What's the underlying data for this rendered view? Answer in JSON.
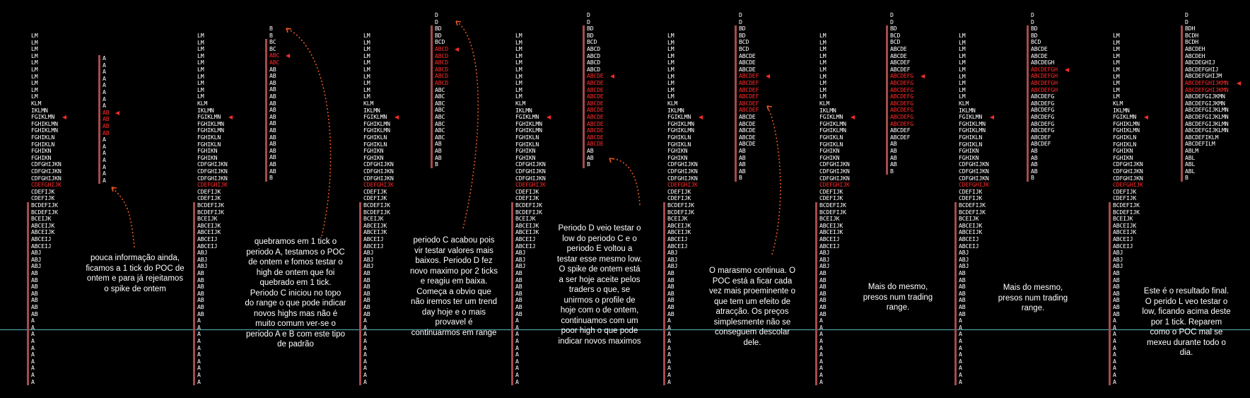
{
  "chart_data": {
    "type": "market-profile",
    "colors": {
      "text": "#ffffff",
      "poc": "#ff2a2a",
      "bar": "#a64b4b",
      "arrow": "#e8561e",
      "reference_line": "#5fb3c4"
    },
    "previous_day_profile": [
      "LM",
      "LM",
      "LM",
      "LM",
      "LM",
      "LM",
      "LM",
      "LM",
      "LM",
      "LM",
      "KLM",
      "IKLMN",
      "FGIKLMN",
      "FGHIKLMN",
      "FGHIKLMN",
      "FGHIKLN",
      "FGHIKLN",
      "FGHIKN",
      "FGHIKN",
      "CDFGHIJKN",
      "CDFGHIJKN",
      "CDFGHIJKN",
      "CDEFGHIJK",
      "CDEFIJK",
      "CDEFIJK",
      "BCDEFIJK",
      "BCDEFIJK",
      "BCEIJK",
      "ABCEIJK",
      "ABCEIJK",
      "ABCEIJ",
      "ABCEIJ",
      "ABJ",
      "ABJ",
      "ABJ",
      "AB",
      "AB",
      "AB",
      "AB",
      "AB",
      "AB",
      "AB",
      "A",
      "A",
      "A",
      "A",
      "A",
      "A",
      "A",
      "A",
      "A",
      "A"
    ],
    "previous_day_poc": "CDEFGHIJK",
    "today_profiles": [
      {
        "rows": [
          "A",
          "A",
          "A",
          "A",
          "A",
          "A",
          "A",
          "A",
          "AB",
          "AB",
          "AB",
          "AB",
          "A",
          "A",
          "A",
          "A",
          "A",
          "A",
          "A"
        ],
        "poc": "AB"
      },
      {
        "rows": [
          "B",
          "B",
          "BC",
          "BC",
          "ABC",
          "ABC",
          "AB",
          "AB",
          "AB",
          "AB",
          "AB",
          "AB",
          "AB",
          "AB",
          "AB",
          "AB",
          "AB",
          "AB",
          "AB",
          "AB",
          "AB",
          "AB",
          "B"
        ],
        "poc": "ABC"
      },
      {
        "rows": [
          "D",
          "D",
          "BD",
          "BD",
          "BCD",
          "ABCD",
          "ABCD",
          "ABCD",
          "ABCD",
          "ABCD",
          "ABCD",
          "ABC",
          "ABC",
          "ABC",
          "ABC",
          "ABC",
          "ABC",
          "ABC",
          "ABC",
          "AB",
          "AB",
          "AB",
          "B"
        ],
        "poc": "ABCD"
      },
      {
        "rows": [
          "D",
          "D",
          "BD",
          "BD",
          "BCD",
          "ABCD",
          "ABCD",
          "ABCD",
          "ABCD",
          "ABCDE",
          "ABCDE",
          "ABCDE",
          "ABCDE",
          "ABCDE",
          "ABCDE",
          "ABCDE",
          "ABCDE",
          "ABCDE",
          "ABCDE",
          "ABCDE",
          "AB",
          "AB",
          "B"
        ],
        "poc": "ABCDE"
      },
      {
        "rows": [
          "D",
          "D",
          "BD",
          "BD",
          "BCD",
          "BCD",
          "ABCDE",
          "ABCDE",
          "ABCDE",
          "ABCDEF",
          "ABCDEF",
          "ABCDEF",
          "ABCDEF",
          "ABCDEF",
          "ABCDEF",
          "ABCDE",
          "ABCDE",
          "ABCDE",
          "ABCDE",
          "ABCDE",
          "AB",
          "AB",
          "AB",
          "AB",
          "B"
        ],
        "poc": "ABCDEF"
      },
      {
        "rows": [
          "D",
          "D",
          "BD",
          "BCD",
          "BCD",
          "ABCDE",
          "ABCDE",
          "ABCDEF",
          "ABCDEF",
          "ABCDEFG",
          "ABCDEFG",
          "ABCDEFG",
          "ABCDEFG",
          "ABCDEFG",
          "ABCDEFG",
          "ABCDEFG",
          "ABCDEFG",
          "ABCDEF",
          "ABCDEF",
          "AB",
          "AB",
          "AB",
          "AB",
          "B"
        ],
        "poc": "ABCDEFG"
      },
      {
        "rows": [
          "D",
          "D",
          "BD",
          "BD",
          "BCD",
          "ABCDE",
          "ABCDE",
          "ABCDEGH",
          "ABCDEFGH",
          "ABCDEFGH",
          "ABCDEFGH",
          "ABCDEFGH",
          "ABCDEFG",
          "ABCDEFG",
          "ABCDEFG",
          "ABCDEFG",
          "ABCDEFG",
          "ABCDEFG",
          "ABCDEF",
          "ABCDEF",
          "AB",
          "AB",
          "AB",
          "AB",
          "B"
        ],
        "poc": "ABCDEFGH"
      },
      {
        "rows": [
          "D",
          "D",
          "BDH",
          "BCDH",
          "BCDH",
          "ABCDEH",
          "ABCDEH",
          "ABCDEGHIJ",
          "ABCDEFGHIJ",
          "ABCDEFGHIJM",
          "ABCDEFGHIJKMN",
          "ABCDEFGHIJKMN",
          "ABCDEFGIJKMN",
          "ABCDEFGIJKMN",
          "ABCDEFGIJKLMN",
          "ABCDEFGIJKLMN",
          "ABCDEFGIJKLMN",
          "ABCDEFGIJKLMN",
          "ABCDEFIKLM",
          "ABCDEFILM",
          "ABLM",
          "ABL",
          "ABL",
          "ABL",
          "B"
        ],
        "poc": "ABCDEFGHIJKMN"
      }
    ],
    "annotations": [
      "pouca informação ainda, ficamos a 1 tick do POC de ontem e para já rejeitamos o spike de ontem",
      "quebramos em 1 tick o periodo A, testamos o POC de ontem e fomos testar o high de ontem que foi quebrado em 1 tick.\nPeriodo C iniciou no topo do range o que pode indicar novos highs mas não é muito comum ver-se o periodo A e B com este tipo de padrão",
      "periodo C acabou pois vir testar valores mais baixos. Periodo D fez novo maximo por 2 ticks e reagiu em baixa.\nComeça a  obvio que não iremos ter um trend day hoje e o mais provavel é continuarmos em range",
      "Periodo D veio testar o low do periodo C e o periodo E voltou a testar esse mesmo low.\nO spike de ontem está a ser hoje aceite pelos traders o que, se unirmos o profile de hoje com o de ontem, continuamos com um poor high o que pode indicar novos maximos",
      "O marasmo continua. O POC está a ficar cada vez mais proeminente o que tem um efeito de atracção. Os preços simplesmente não se conseguem descolar dele.",
      "Mais do mesmo, presos num trading range.",
      "Mais do mesmo, presos num trading range.",
      "Este é o resultado final. O perido L veo testar o low, ficando acima deste por 1 tick. Reparem como o POC mal se mexeu durante todo o dia."
    ]
  }
}
